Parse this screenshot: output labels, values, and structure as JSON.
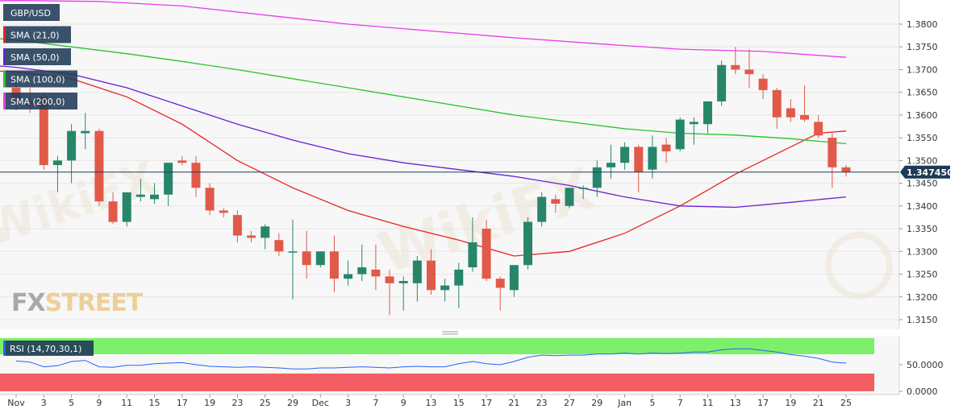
{
  "chart_data": {
    "type": "candlestick",
    "symbol": "GBP/USD",
    "current_price": "1.347450",
    "price_axis": {
      "ylim": [
        1.3125,
        1.385
      ],
      "ticks": [
        "1.3800",
        "1.3750",
        "1.3700",
        "1.3650",
        "1.3600",
        "1.3550",
        "1.3500",
        "1.3450",
        "1.3400",
        "1.3350",
        "1.3300",
        "1.3250",
        "1.3200",
        "1.3150"
      ]
    },
    "time_axis": {
      "labels": [
        {
          "i": 0,
          "text": "Nov"
        },
        {
          "i": 2,
          "text": "3"
        },
        {
          "i": 4,
          "text": "5"
        },
        {
          "i": 6,
          "text": "9"
        },
        {
          "i": 8,
          "text": "11"
        },
        {
          "i": 10,
          "text": "15"
        },
        {
          "i": 12,
          "text": "17"
        },
        {
          "i": 14,
          "text": "19"
        },
        {
          "i": 16,
          "text": "23"
        },
        {
          "i": 18,
          "text": "25"
        },
        {
          "i": 20,
          "text": "29"
        },
        {
          "i": 22,
          "text": "Dec"
        },
        {
          "i": 24,
          "text": "3"
        },
        {
          "i": 26,
          "text": "7"
        },
        {
          "i": 28,
          "text": "9"
        },
        {
          "i": 30,
          "text": "13"
        },
        {
          "i": 32,
          "text": "15"
        },
        {
          "i": 34,
          "text": "17"
        },
        {
          "i": 36,
          "text": "21"
        },
        {
          "i": 38,
          "text": "23"
        },
        {
          "i": 40,
          "text": "27"
        },
        {
          "i": 42,
          "text": "29"
        },
        {
          "i": 44,
          "text": "Jan"
        },
        {
          "i": 46,
          "text": "5"
        },
        {
          "i": 48,
          "text": "7"
        },
        {
          "i": 50,
          "text": "11"
        },
        {
          "i": 52,
          "text": "13"
        },
        {
          "i": 54,
          "text": "17"
        },
        {
          "i": 56,
          "text": "19"
        },
        {
          "i": 58,
          "text": "21"
        },
        {
          "i": 60,
          "text": "25"
        }
      ]
    },
    "candles": [
      [
        1.366,
        1.368,
        1.361,
        1.363
      ],
      [
        1.363,
        1.366,
        1.3605,
        1.362
      ],
      [
        1.364,
        1.365,
        1.348,
        1.349
      ],
      [
        1.349,
        1.351,
        1.343,
        1.35
      ],
      [
        1.35,
        1.358,
        1.345,
        1.3565
      ],
      [
        1.356,
        1.3605,
        1.3525,
        1.3565
      ],
      [
        1.3565,
        1.357,
        1.34,
        1.341
      ],
      [
        1.341,
        1.343,
        1.336,
        1.3365
      ],
      [
        1.3365,
        1.343,
        1.3355,
        1.343
      ],
      [
        1.342,
        1.346,
        1.341,
        1.3425
      ],
      [
        1.3415,
        1.345,
        1.3405,
        1.3425
      ],
      [
        1.3425,
        1.3495,
        1.34,
        1.3495
      ],
      [
        1.35,
        1.351,
        1.349,
        1.3495
      ],
      [
        1.3495,
        1.351,
        1.342,
        1.344
      ],
      [
        1.344,
        1.345,
        1.338,
        1.339
      ],
      [
        1.339,
        1.3395,
        1.3375,
        1.3385
      ],
      [
        1.338,
        1.339,
        1.332,
        1.3335
      ],
      [
        1.3335,
        1.3345,
        1.332,
        1.333
      ],
      [
        1.333,
        1.336,
        1.3305,
        1.3355
      ],
      [
        1.3325,
        1.334,
        1.329,
        1.33
      ],
      [
        1.33,
        1.337,
        1.3195,
        1.33
      ],
      [
        1.33,
        1.3345,
        1.324,
        1.327
      ],
      [
        1.327,
        1.33,
        1.3265,
        1.33
      ],
      [
        1.33,
        1.3335,
        1.321,
        1.324
      ],
      [
        1.324,
        1.328,
        1.3225,
        1.325
      ],
      [
        1.325,
        1.3315,
        1.3235,
        1.3265
      ],
      [
        1.326,
        1.3315,
        1.3215,
        1.3245
      ],
      [
        1.3245,
        1.326,
        1.316,
        1.323
      ],
      [
        1.323,
        1.3245,
        1.317,
        1.3235
      ],
      [
        1.323,
        1.329,
        1.319,
        1.328
      ],
      [
        1.328,
        1.3305,
        1.3205,
        1.3215
      ],
      [
        1.3215,
        1.324,
        1.319,
        1.3225
      ],
      [
        1.3225,
        1.3275,
        1.3175,
        1.326
      ],
      [
        1.3265,
        1.3375,
        1.3255,
        1.332
      ],
      [
        1.335,
        1.337,
        1.3235,
        1.324
      ],
      [
        1.324,
        1.3245,
        1.317,
        1.322
      ],
      [
        1.3215,
        1.327,
        1.32,
        1.327
      ],
      [
        1.327,
        1.3375,
        1.326,
        1.3365
      ],
      [
        1.3365,
        1.343,
        1.3355,
        1.342
      ],
      [
        1.3415,
        1.3425,
        1.3385,
        1.3405
      ],
      [
        1.34,
        1.344,
        1.3395,
        1.344
      ],
      [
        1.344,
        1.3445,
        1.3415,
        1.344
      ],
      [
        1.344,
        1.35,
        1.342,
        1.3485
      ],
      [
        1.3485,
        1.3535,
        1.346,
        1.3495
      ],
      [
        1.3495,
        1.354,
        1.348,
        1.353
      ],
      [
        1.353,
        1.3535,
        1.343,
        1.3475
      ],
      [
        1.348,
        1.3555,
        1.346,
        1.353
      ],
      [
        1.3535,
        1.355,
        1.3495,
        1.352
      ],
      [
        1.3525,
        1.3595,
        1.352,
        1.359
      ],
      [
        1.358,
        1.3595,
        1.3535,
        1.3585
      ],
      [
        1.358,
        1.363,
        1.356,
        1.363
      ],
      [
        1.363,
        1.372,
        1.362,
        1.371
      ],
      [
        1.371,
        1.375,
        1.369,
        1.37
      ],
      [
        1.37,
        1.3745,
        1.366,
        1.369
      ],
      [
        1.368,
        1.369,
        1.3635,
        1.3655
      ],
      [
        1.3655,
        1.366,
        1.357,
        1.3595
      ],
      [
        1.3615,
        1.3635,
        1.3585,
        1.3595
      ],
      [
        1.36,
        1.3665,
        1.3585,
        1.359
      ],
      [
        1.3585,
        1.36,
        1.355,
        1.3555
      ],
      [
        1.355,
        1.356,
        1.344,
        1.3485
      ],
      [
        1.3485,
        1.349,
        1.3465,
        1.3475
      ]
    ],
    "sma": [
      {
        "name": "SMA (21,0)",
        "color": "#e8241f",
        "points": [
          [
            -4,
            1.37
          ],
          [
            0,
            1.3695
          ],
          [
            4,
            1.368
          ],
          [
            8,
            1.364
          ],
          [
            12,
            1.358
          ],
          [
            16,
            1.35
          ],
          [
            20,
            1.344
          ],
          [
            24,
            1.339
          ],
          [
            28,
            1.3355
          ],
          [
            32,
            1.3325
          ],
          [
            36,
            1.329
          ],
          [
            40,
            1.33
          ],
          [
            44,
            1.334
          ],
          [
            48,
            1.34
          ],
          [
            52,
            1.347
          ],
          [
            56,
            1.353
          ],
          [
            58,
            1.356
          ],
          [
            60,
            1.3565
          ]
        ]
      },
      {
        "name": "SMA (50,0)",
        "color": "#6a1fd1",
        "points": [
          [
            -4,
            1.3715
          ],
          [
            0,
            1.3705
          ],
          [
            4,
            1.369
          ],
          [
            8,
            1.366
          ],
          [
            12,
            1.362
          ],
          [
            16,
            1.358
          ],
          [
            20,
            1.3545
          ],
          [
            24,
            1.3515
          ],
          [
            28,
            1.3495
          ],
          [
            32,
            1.348
          ],
          [
            36,
            1.3465
          ],
          [
            40,
            1.3445
          ],
          [
            44,
            1.342
          ],
          [
            48,
            1.34
          ],
          [
            52,
            1.3397
          ],
          [
            56,
            1.3408
          ],
          [
            60,
            1.342
          ]
        ]
      },
      {
        "name": "SMA (100,0)",
        "color": "#28c22b",
        "points": [
          [
            -4,
            1.3775
          ],
          [
            0,
            1.3765
          ],
          [
            4,
            1.375
          ],
          [
            8,
            1.3735
          ],
          [
            12,
            1.3718
          ],
          [
            16,
            1.37
          ],
          [
            20,
            1.368
          ],
          [
            24,
            1.366
          ],
          [
            28,
            1.364
          ],
          [
            32,
            1.362
          ],
          [
            36,
            1.36
          ],
          [
            40,
            1.3585
          ],
          [
            44,
            1.357
          ],
          [
            48,
            1.356
          ],
          [
            52,
            1.3556
          ],
          [
            56,
            1.3548
          ],
          [
            60,
            1.3537
          ]
        ]
      },
      {
        "name": "SMA (200,0)",
        "color": "#e83be8",
        "points": [
          [
            -4,
            1.385
          ],
          [
            0,
            1.3852
          ],
          [
            6,
            1.385
          ],
          [
            12,
            1.384
          ],
          [
            18,
            1.382
          ],
          [
            24,
            1.38
          ],
          [
            30,
            1.3785
          ],
          [
            36,
            1.377
          ],
          [
            42,
            1.3757
          ],
          [
            48,
            1.3745
          ],
          [
            54,
            1.374
          ],
          [
            60,
            1.3727
          ]
        ]
      }
    ],
    "rsi": {
      "label": "RSI (14,70,30,1)",
      "ticks": [
        "50.0000",
        "0.0000"
      ],
      "ylim": [
        0,
        100
      ],
      "values": [
        57,
        55,
        46,
        48,
        56,
        58,
        46,
        45,
        49,
        49,
        52,
        53,
        54,
        50,
        47,
        46,
        45,
        46,
        45,
        44,
        42,
        42,
        44,
        44,
        45,
        46,
        45,
        44,
        46,
        47,
        46,
        46,
        52,
        56,
        52,
        50,
        56,
        64,
        68,
        67,
        68,
        68,
        70,
        70,
        72,
        70,
        72,
        71,
        72,
        74,
        74,
        78,
        80,
        80,
        77,
        74,
        69,
        66,
        62,
        55,
        53
      ]
    },
    "legend": [
      "GBP/USD",
      "SMA (21,0)",
      "SMA (50,0)",
      "SMA (100,0)",
      "SMA (200,0)"
    ],
    "watermark": "FXSTREET",
    "colors": {
      "up": "#26866a",
      "down": "#e05a4a",
      "rsi_line": "#2962ff",
      "overbought": "#7cf06a",
      "oversold": "#f25e63",
      "price_line": "#1f3a56"
    }
  }
}
